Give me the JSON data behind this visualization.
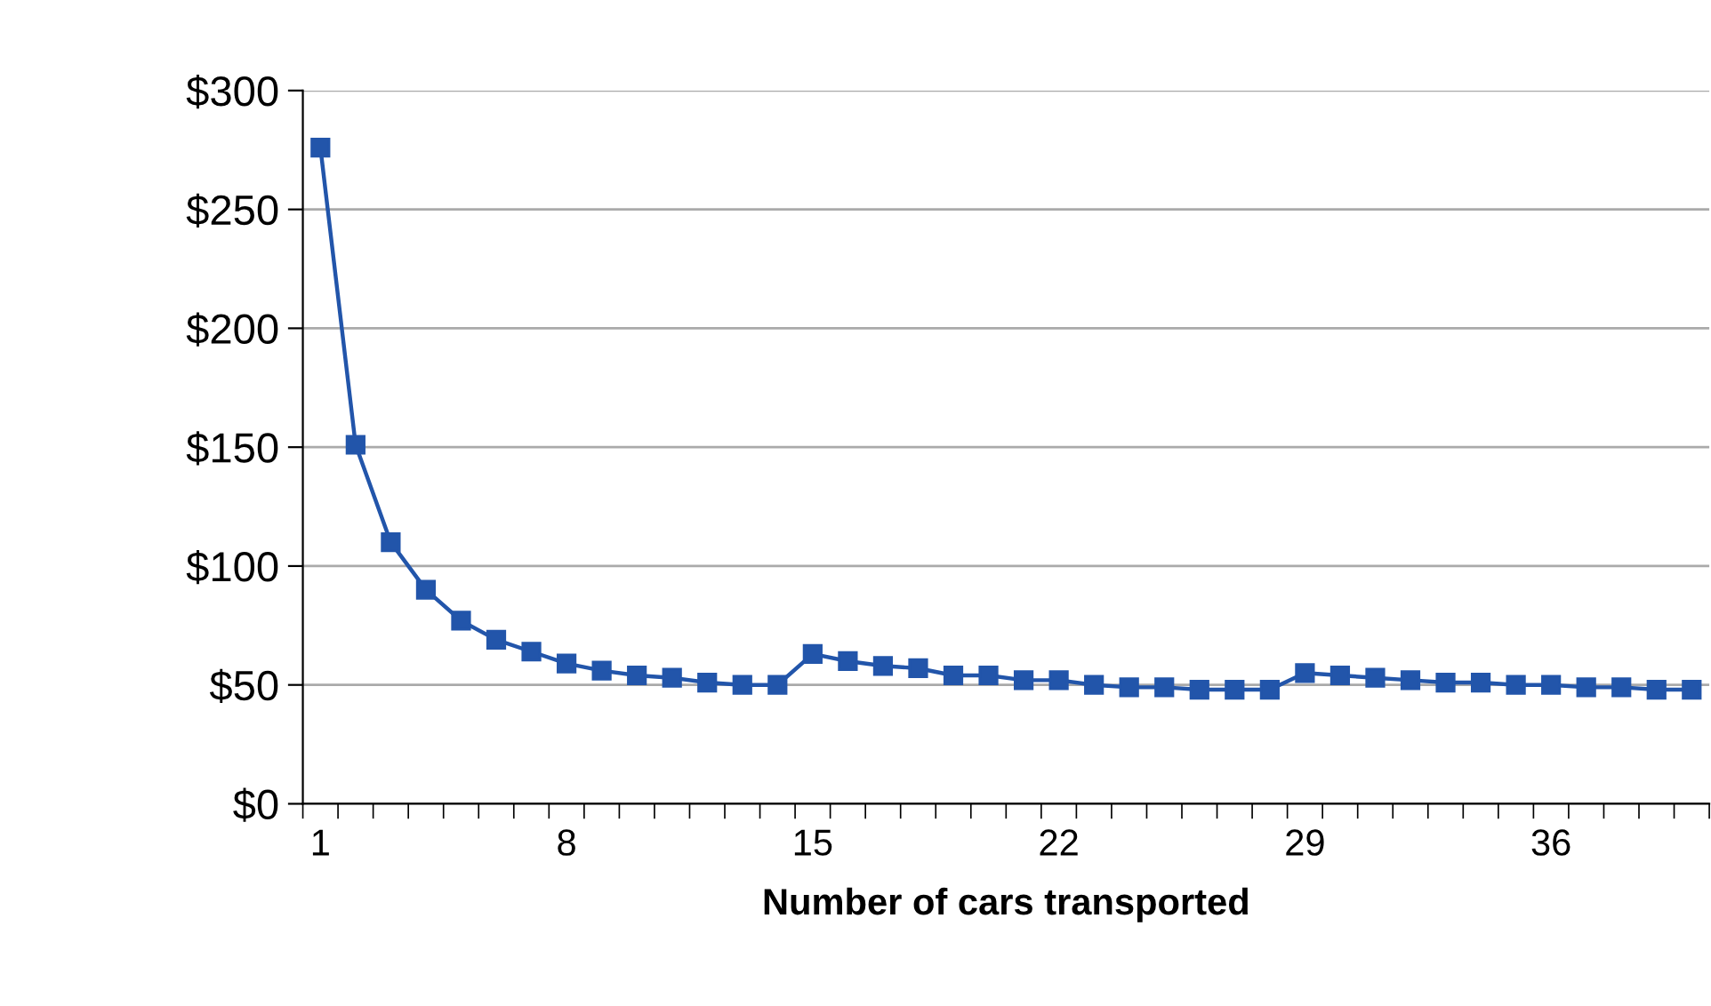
{
  "chart_data": {
    "type": "line",
    "xlabel": "Number of cars transported",
    "categories": [
      "1",
      null,
      null,
      null,
      null,
      null,
      null,
      "8",
      null,
      null,
      null,
      null,
      null,
      null,
      "15",
      null,
      null,
      null,
      null,
      null,
      null,
      "22",
      null,
      null,
      null,
      null,
      null,
      null,
      "29",
      null,
      null,
      null,
      null,
      null,
      null,
      "36",
      null,
      null,
      null,
      null
    ],
    "series": [
      {
        "color": "#2255aa",
        "values": [
          276,
          151,
          110,
          90,
          77,
          69,
          64,
          59,
          56,
          54,
          53,
          51,
          50,
          50,
          63,
          60,
          58,
          57,
          54,
          54,
          52,
          52,
          50,
          49,
          49,
          48,
          48,
          48,
          55,
          54,
          53,
          52,
          51,
          51,
          50,
          50,
          49,
          49,
          48,
          48
        ]
      }
    ],
    "ylim": [
      0,
      300
    ],
    "yticks": [
      {
        "value": 0,
        "label": "$0"
      },
      {
        "value": 50,
        "label": "$50"
      },
      {
        "value": 100,
        "label": "$100"
      },
      {
        "value": 150,
        "label": "$150"
      },
      {
        "value": 200,
        "label": "$200"
      },
      {
        "value": 250,
        "label": "$250"
      },
      {
        "value": 300,
        "label": "$300"
      }
    ],
    "grid": "y",
    "marker": "square",
    "line_style": "solid",
    "legend": false
  }
}
